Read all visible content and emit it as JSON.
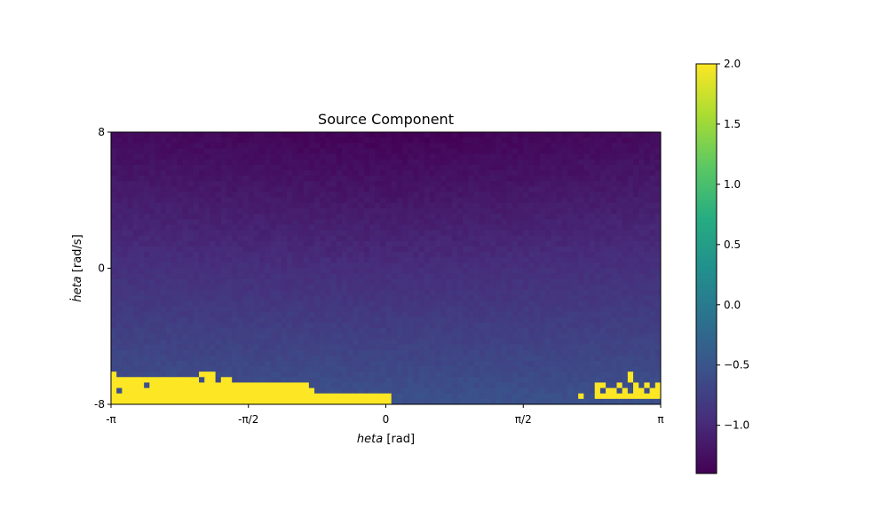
{
  "chart_data": {
    "type": "heatmap",
    "title": "Source Component",
    "xlabel_italic": "heta",
    "xlabel_unit": " [rad]",
    "ylabel_italic": "ḣeta",
    "ylabel_unit": " [rad/s]",
    "x_tick_labels": [
      "-π",
      "-π/2",
      "0",
      "π/2",
      "π"
    ],
    "x_ticks": [
      -3.1416,
      -1.5708,
      0,
      1.5708,
      3.1416
    ],
    "xlim": [
      -3.1416,
      3.1416
    ],
    "y_tick_labels": [
      "8",
      "0",
      "-8"
    ],
    "y_ticks": [
      8,
      0,
      -8
    ],
    "ylim": [
      -8,
      8
    ],
    "colormap": "viridis",
    "colorbar": {
      "vmin": -1.4,
      "vmax": 2.0,
      "tick_labels": [
        "2.0",
        "1.5",
        "1.0",
        "0.5",
        "0.0",
        "−0.5",
        "−1.0"
      ],
      "ticks": [
        2.0,
        1.5,
        1.0,
        0.5,
        0.0,
        -0.5,
        -1.0
      ]
    },
    "grid": {
      "nx": 100,
      "ny": 50
    },
    "gradient": {
      "top_value": -1.3,
      "bottom_value": -0.55,
      "top_center_extra": -0.08
    },
    "saturated_value": 2.0,
    "bottom_band": [
      {
        "x_from": -3.1416,
        "x_to": -0.38,
        "rows_from_bottom": 1
      },
      {
        "x_from": -3.1416,
        "x_to": -1.4,
        "rows_from_bottom": 2
      },
      {
        "x_from": -3.1416,
        "x_to": -0.95,
        "rows_from_bottom": 2
      },
      {
        "x_from": -3.1416,
        "x_to": -0.08,
        "rows_from_bottom": 0
      },
      {
        "x_from": -2.9,
        "x_to": -1.4,
        "rows_from_bottom": 2
      },
      {
        "x_from": -2.25,
        "x_to": -1.4,
        "rows_from_bottom": 3
      }
    ],
    "scatter_cells": [
      [
        0,
        3
      ],
      [
        1,
        3
      ],
      [
        3,
        3
      ],
      [
        0,
        2
      ],
      [
        2,
        2
      ],
      [
        3,
        2
      ],
      [
        0,
        4
      ],
      [
        4,
        3
      ],
      [
        5,
        3
      ],
      [
        0,
        5
      ],
      [
        4,
        4
      ],
      [
        5,
        4
      ],
      [
        6,
        4
      ],
      [
        7,
        4
      ],
      [
        8,
        4
      ],
      [
        9,
        4
      ],
      [
        10,
        4
      ],
      [
        11,
        4
      ],
      [
        12,
        4
      ],
      [
        13,
        4
      ],
      [
        4,
        2
      ],
      [
        5,
        2
      ],
      [
        6,
        2
      ],
      [
        7,
        2
      ],
      [
        8,
        2
      ],
      [
        9,
        2
      ],
      [
        10,
        2
      ],
      [
        11,
        2
      ],
      [
        12,
        2
      ],
      [
        13,
        2
      ],
      [
        14,
        2
      ],
      [
        15,
        2
      ],
      [
        16,
        2
      ],
      [
        17,
        2
      ],
      [
        18,
        2
      ],
      [
        19,
        2
      ],
      [
        20,
        2
      ],
      [
        21,
        2
      ],
      [
        22,
        2
      ],
      [
        23,
        2
      ],
      [
        24,
        2
      ],
      [
        25,
        2
      ],
      [
        26,
        2
      ],
      [
        27,
        2
      ],
      [
        28,
        2
      ],
      [
        29,
        2
      ],
      [
        30,
        2
      ],
      [
        31,
        2
      ],
      [
        32,
        2
      ],
      [
        33,
        2
      ],
      [
        34,
        2
      ],
      [
        35,
        2
      ],
      [
        36,
        2
      ],
      [
        37,
        1
      ],
      [
        38,
        1
      ],
      [
        39,
        1
      ],
      [
        40,
        1
      ],
      [
        41,
        1
      ],
      [
        42,
        1
      ],
      [
        43,
        1
      ],
      [
        44,
        1
      ],
      [
        45,
        1
      ],
      [
        1,
        4
      ],
      [
        2,
        3
      ],
      [
        2,
        4
      ],
      [
        3,
        4
      ],
      [
        7,
        3
      ],
      [
        8,
        3
      ],
      [
        9,
        3
      ],
      [
        10,
        3
      ],
      [
        11,
        3
      ],
      [
        12,
        3
      ],
      [
        13,
        3
      ],
      [
        14,
        3
      ],
      [
        15,
        3
      ],
      [
        16,
        3
      ],
      [
        17,
        3
      ],
      [
        18,
        3
      ],
      [
        19,
        3
      ],
      [
        20,
        3
      ],
      [
        21,
        3
      ],
      [
        22,
        3
      ],
      [
        23,
        3
      ],
      [
        24,
        3
      ],
      [
        25,
        3
      ],
      [
        26,
        3
      ],
      [
        27,
        3
      ],
      [
        28,
        3
      ],
      [
        29,
        3
      ],
      [
        30,
        3
      ],
      [
        31,
        3
      ],
      [
        32,
        3
      ],
      [
        33,
        3
      ],
      [
        34,
        3
      ],
      [
        35,
        3
      ],
      [
        7,
        4
      ],
      [
        14,
        4
      ],
      [
        15,
        4
      ],
      [
        17,
        4
      ],
      [
        18,
        4
      ],
      [
        20,
        4
      ],
      [
        21,
        4
      ],
      [
        16,
        5
      ],
      [
        17,
        5
      ],
      [
        18,
        5
      ],
      [
        46,
        1
      ],
      [
        47,
        1
      ],
      [
        48,
        1
      ],
      [
        49,
        1
      ],
      [
        50,
        1
      ],
      [
        0,
        1
      ],
      [
        1,
        1
      ],
      [
        2,
        1
      ],
      [
        3,
        1
      ],
      [
        4,
        1
      ],
      [
        5,
        1
      ],
      [
        6,
        1
      ],
      [
        7,
        1
      ],
      [
        8,
        1
      ],
      [
        9,
        1
      ],
      [
        10,
        1
      ],
      [
        11,
        1
      ],
      [
        12,
        1
      ],
      [
        13,
        1
      ],
      [
        14,
        1
      ],
      [
        15,
        1
      ],
      [
        16,
        1
      ],
      [
        17,
        1
      ],
      [
        18,
        1
      ],
      [
        19,
        1
      ],
      [
        20,
        1
      ],
      [
        21,
        1
      ],
      [
        22,
        1
      ],
      [
        23,
        1
      ],
      [
        24,
        1
      ],
      [
        25,
        1
      ],
      [
        26,
        1
      ],
      [
        27,
        1
      ],
      [
        28,
        1
      ],
      [
        29,
        1
      ],
      [
        30,
        1
      ],
      [
        31,
        1
      ],
      [
        32,
        1
      ],
      [
        33,
        1
      ],
      [
        34,
        1
      ],
      [
        35,
        1
      ],
      [
        36,
        1
      ],
      [
        0,
        0
      ],
      [
        1,
        0
      ],
      [
        2,
        0
      ],
      [
        3,
        0
      ],
      [
        4,
        0
      ],
      [
        5,
        0
      ],
      [
        6,
        0
      ],
      [
        7,
        0
      ],
      [
        8,
        0
      ],
      [
        9,
        0
      ],
      [
        10,
        0
      ],
      [
        11,
        0
      ],
      [
        12,
        0
      ],
      [
        13,
        0
      ],
      [
        14,
        0
      ],
      [
        15,
        0
      ],
      [
        16,
        0
      ],
      [
        17,
        0
      ],
      [
        18,
        0
      ],
      [
        19,
        0
      ],
      [
        20,
        0
      ],
      [
        21,
        0
      ],
      [
        22,
        0
      ],
      [
        23,
        0
      ],
      [
        24,
        0
      ],
      [
        25,
        0
      ],
      [
        26,
        0
      ],
      [
        27,
        0
      ],
      [
        28,
        0
      ],
      [
        29,
        0
      ],
      [
        30,
        0
      ],
      [
        31,
        0
      ],
      [
        32,
        0
      ],
      [
        33,
        0
      ],
      [
        34,
        0
      ],
      [
        35,
        0
      ],
      [
        36,
        0
      ],
      [
        37,
        0
      ],
      [
        38,
        0
      ],
      [
        39,
        0
      ],
      [
        40,
        0
      ],
      [
        41,
        0
      ],
      [
        42,
        0
      ],
      [
        43,
        0
      ],
      [
        44,
        0
      ],
      [
        45,
        0
      ],
      [
        46,
        0
      ],
      [
        47,
        0
      ],
      [
        48,
        0
      ],
      [
        49,
        0
      ],
      [
        50,
        0
      ],
      [
        85,
        1
      ],
      [
        88,
        1
      ],
      [
        89,
        1
      ],
      [
        90,
        1
      ],
      [
        91,
        1
      ],
      [
        92,
        1
      ],
      [
        93,
        1
      ],
      [
        94,
        1
      ],
      [
        95,
        1
      ],
      [
        96,
        1
      ],
      [
        97,
        1
      ],
      [
        98,
        1
      ],
      [
        99,
        1
      ],
      [
        88,
        2
      ],
      [
        90,
        2
      ],
      [
        91,
        2
      ],
      [
        93,
        2
      ],
      [
        95,
        2
      ],
      [
        96,
        2
      ],
      [
        98,
        2
      ],
      [
        99,
        2
      ],
      [
        88,
        3
      ],
      [
        89,
        3
      ],
      [
        92,
        3
      ],
      [
        95,
        3
      ],
      [
        97,
        3
      ],
      [
        94,
        4
      ],
      [
        99,
        3
      ],
      [
        94,
        5
      ]
    ]
  }
}
